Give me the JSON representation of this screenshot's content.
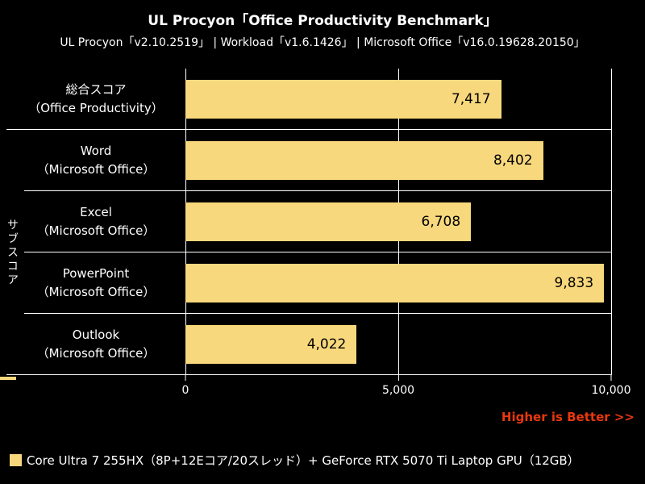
{
  "header": {
    "title": "UL Procyon「Office Productivity Benchmark」",
    "subtitle": "UL Procyon「v2.10.2519」 | Workload「v1.6.1426」 | Microsoft Office「v16.0.19628.20150」"
  },
  "colors": {
    "background": "#000000",
    "bar": "#F8D87C",
    "text": "#FFFFFF",
    "value_text": "#000000",
    "grid": "#FFFFFF",
    "annotation": "#E8380D"
  },
  "chart_data": {
    "type": "bar",
    "orientation": "horizontal",
    "title": "UL Procyon「Office Productivity Benchmark」",
    "group_axis_label": "サブスコア",
    "categories": [
      {
        "line1": "総合スコア",
        "line2": "（Office Productivity）"
      },
      {
        "line1": "Word",
        "line2": "（Microsoft Office）"
      },
      {
        "line1": "Excel",
        "line2": "（Microsoft Office）"
      },
      {
        "line1": "PowerPoint",
        "line2": "（Microsoft Office）"
      },
      {
        "line1": "Outlook",
        "line2": "（Microsoft Office）"
      }
    ],
    "values": [
      7417,
      8402,
      6708,
      9833,
      4022
    ],
    "value_labels": [
      "7,417",
      "8,402",
      "6,708",
      "9,833",
      "4,022"
    ],
    "xlim": [
      0,
      10000
    ],
    "x_ticks": [
      {
        "value": 0,
        "label": "0"
      },
      {
        "value": 5000,
        "label": "5,000"
      },
      {
        "value": 10000,
        "label": "10,000"
      }
    ],
    "grid": true,
    "legend_position": "bottom",
    "series": [
      {
        "name": "Core Ultra 7 255HX（8P+12Eコア/20スレッド）+ GeForce RTX 5070 Ti Laptop GPU（12GB）",
        "values": [
          7417,
          8402,
          6708,
          9833,
          4022
        ]
      }
    ]
  },
  "annotation": {
    "higher_is_better": "Higher is Better >>"
  }
}
